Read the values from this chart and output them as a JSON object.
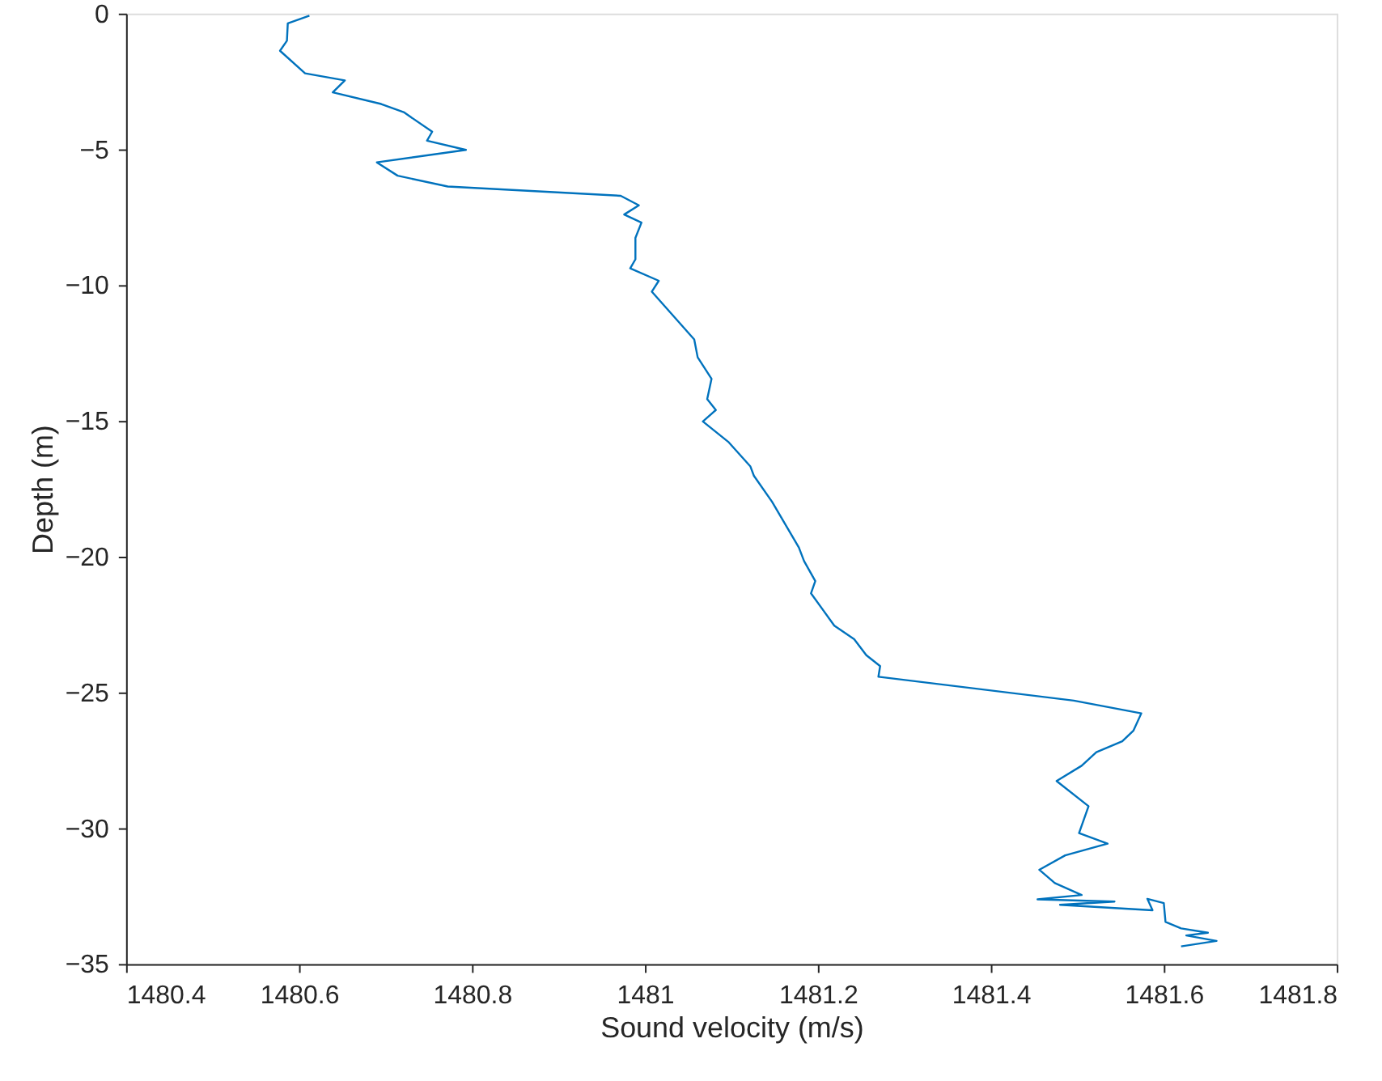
{
  "chart_data": {
    "type": "line",
    "xlabel": "Sound velocity (m/s)",
    "ylabel": "Depth (m)",
    "xlim": [
      1480.4,
      1481.8
    ],
    "xticks": [
      1480.4,
      1480.6,
      1480.8,
      1481,
      1481.2,
      1481.4,
      1481.6,
      1481.8
    ],
    "ylim": [
      -35,
      0
    ],
    "yticks": [
      -35,
      -30,
      -25,
      -20,
      -15,
      -10,
      -5,
      0
    ],
    "grid": false,
    "series": [
      {
        "color": "#0072bd",
        "x": [
          1480.612,
          1480.587,
          1480.586,
          1480.578,
          1480.607,
          1480.653,
          1480.639,
          1480.695,
          1480.721,
          1480.754,
          1480.748,
          1480.793,
          1480.69,
          1480.714,
          1480.772,
          1480.972,
          1480.993,
          1480.976,
          1480.996,
          1480.989,
          1480.989,
          1480.983,
          1481.016,
          1481.008,
          1481.057,
          1481.061,
          1481.077,
          1481.072,
          1481.082,
          1481.067,
          1481.097,
          1481.122,
          1481.126,
          1481.147,
          1481.178,
          1481.184,
          1481.197,
          1481.192,
          1481.219,
          1481.242,
          1481.256,
          1481.272,
          1481.27,
          1481.496,
          1481.574,
          1481.565,
          1481.552,
          1481.522,
          1481.505,
          1481.476,
          1481.513,
          1481.502,
          1481.535,
          1481.486,
          1481.456,
          1481.474,
          1481.505,
          1481.454,
          1481.543,
          1481.48,
          1481.587,
          1481.581,
          1481.6,
          1481.602,
          1481.62,
          1481.651,
          1481.626,
          1481.661,
          1481.62
        ],
        "values": [
          -0.08,
          -0.36,
          -1.0,
          -1.37,
          -2.2,
          -2.46,
          -2.9,
          -3.33,
          -3.63,
          -4.35,
          -4.68,
          -5.02,
          -5.48,
          -5.97,
          -6.37,
          -6.71,
          -7.06,
          -7.4,
          -7.7,
          -8.26,
          -9.05,
          -9.38,
          -9.84,
          -10.24,
          -12.0,
          -12.66,
          -13.45,
          -14.2,
          -14.6,
          -15.02,
          -15.79,
          -16.68,
          -17.02,
          -17.98,
          -19.66,
          -20.16,
          -20.9,
          -21.35,
          -22.54,
          -23.04,
          -23.63,
          -24.03,
          -24.42,
          -25.3,
          -25.77,
          -26.4,
          -26.8,
          -27.2,
          -27.7,
          -28.26,
          -29.19,
          -30.18,
          -30.57,
          -31.0,
          -31.53,
          -32.02,
          -32.46,
          -32.62,
          -32.7,
          -32.82,
          -33.02,
          -32.6,
          -32.76,
          -33.45,
          -33.69,
          -33.85,
          -33.95,
          -34.15,
          -34.35
        ]
      }
    ]
  }
}
